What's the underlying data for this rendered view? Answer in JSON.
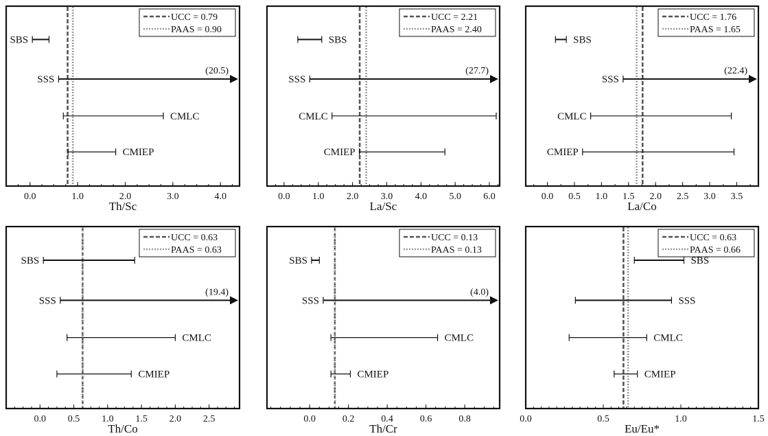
{
  "chart_data": [
    {
      "type": "range",
      "xlabel": "Th/Sc",
      "xlim": [
        -0.5,
        4.4
      ],
      "ticks": [
        0.0,
        1.0,
        2.0,
        3.0,
        4.0
      ],
      "tick_labels": [
        "0.0",
        "1.0",
        "2.0",
        "3.0",
        "4.0"
      ],
      "minor_step": 0.25,
      "references": [
        {
          "name": "UCC",
          "value": 0.79,
          "label": "UCC = 0.79"
        },
        {
          "name": "PAAS",
          "value": 0.9,
          "label": "PAAS = 0.90"
        }
      ],
      "series": [
        {
          "name": "SBS",
          "min": 0.05,
          "max": 0.4,
          "label_side": "left",
          "arrow": false,
          "max_label": ""
        },
        {
          "name": "SSS",
          "min": 0.6,
          "max": 20.5,
          "label_side": "left",
          "arrow": true,
          "max_label": "(20.5)"
        },
        {
          "name": "CMLC",
          "min": 0.7,
          "max": 2.8,
          "label_side": "right",
          "arrow": false,
          "max_label": ""
        },
        {
          "name": "CMIEP",
          "min": 0.8,
          "max": 1.8,
          "label_side": "right",
          "arrow": false,
          "max_label": ""
        }
      ]
    },
    {
      "type": "range",
      "xlabel": "La/Sc",
      "xlim": [
        -0.5,
        6.3
      ],
      "ticks": [
        0.0,
        1.0,
        2.0,
        3.0,
        4.0,
        5.0,
        6.0
      ],
      "tick_labels": [
        "0.0",
        "1.0",
        "2.0",
        "3.0",
        "4.0",
        "5.0",
        "6.0"
      ],
      "minor_step": 0.25,
      "references": [
        {
          "name": "UCC",
          "value": 2.21,
          "label": "UCC = 2.21"
        },
        {
          "name": "PAAS",
          "value": 2.4,
          "label": "PAAS = 2.40"
        }
      ],
      "series": [
        {
          "name": "SBS",
          "min": 0.4,
          "max": 1.1,
          "label_side": "right",
          "arrow": false,
          "max_label": ""
        },
        {
          "name": "SSS",
          "min": 0.75,
          "max": 27.7,
          "label_side": "left",
          "arrow": true,
          "max_label": "(27.7)"
        },
        {
          "name": "CMLC",
          "min": 1.4,
          "max": 6.2,
          "label_side": "left",
          "arrow": false,
          "max_label": ""
        },
        {
          "name": "CMIEP",
          "min": 2.2,
          "max": 4.7,
          "label_side": "left",
          "arrow": false,
          "max_label": ""
        }
      ]
    },
    {
      "type": "range",
      "xlabel": "La/Co",
      "xlim": [
        -0.4,
        3.9
      ],
      "ticks": [
        0.0,
        0.5,
        1.0,
        1.5,
        2.0,
        2.5,
        3.0,
        3.5
      ],
      "tick_labels": [
        "0.0",
        "0.5",
        "1.0",
        "1.5",
        "2.0",
        "2.5",
        "3.0",
        "3.5"
      ],
      "minor_step": 0.25,
      "references": [
        {
          "name": "UCC",
          "value": 1.76,
          "label": "UCC = 1.76"
        },
        {
          "name": "PAAS",
          "value": 1.65,
          "label": "PAAS = 1.65"
        }
      ],
      "series": [
        {
          "name": "SBS",
          "min": 0.15,
          "max": 0.35,
          "label_side": "right",
          "arrow": false,
          "max_label": ""
        },
        {
          "name": "SSS",
          "min": 1.4,
          "max": 22.4,
          "label_side": "left",
          "arrow": true,
          "max_label": "(22.4)"
        },
        {
          "name": "CMLC",
          "min": 0.8,
          "max": 3.4,
          "label_side": "left",
          "arrow": false,
          "max_label": ""
        },
        {
          "name": "CMIEP",
          "min": 0.65,
          "max": 3.45,
          "label_side": "left",
          "arrow": false,
          "max_label": ""
        }
      ]
    },
    {
      "type": "range",
      "xlabel": "Th/Co",
      "xlim": [
        -0.5,
        2.95
      ],
      "ticks": [
        0.0,
        0.5,
        1.0,
        1.5,
        2.0,
        2.5
      ],
      "tick_labels": [
        "0.0",
        "0.5",
        "1.0",
        "1.5",
        "2.0",
        "2.5"
      ],
      "minor_step": 0.125,
      "references": [
        {
          "name": "UCC",
          "value": 0.63,
          "label": "UCC = 0.63"
        },
        {
          "name": "PAAS",
          "value": 0.63,
          "label": "PAAS = 0.63"
        }
      ],
      "series": [
        {
          "name": "SBS",
          "min": 0.05,
          "max": 1.4,
          "label_side": "left",
          "arrow": false,
          "max_label": ""
        },
        {
          "name": "SSS",
          "min": 0.3,
          "max": 19.4,
          "label_side": "left",
          "arrow": true,
          "max_label": "(19.4)"
        },
        {
          "name": "CMLC",
          "min": 0.4,
          "max": 2.0,
          "label_side": "right",
          "arrow": false,
          "max_label": ""
        },
        {
          "name": "CMIEP",
          "min": 0.25,
          "max": 1.35,
          "label_side": "right",
          "arrow": false,
          "max_label": ""
        }
      ]
    },
    {
      "type": "range",
      "xlabel": "Th/Cr",
      "xlim": [
        -0.22,
        0.98
      ],
      "ticks": [
        0.0,
        0.2,
        0.4,
        0.6,
        0.8
      ],
      "tick_labels": [
        "0.0",
        "0.2",
        "0.4",
        "0.6",
        "0.8"
      ],
      "minor_step": 0.05,
      "references": [
        {
          "name": "UCC",
          "value": 0.13,
          "label": "UCC = 0.13"
        },
        {
          "name": "PAAS",
          "value": 0.13,
          "label": "PAAS = 0.13"
        }
      ],
      "series": [
        {
          "name": "SBS",
          "min": 0.01,
          "max": 0.05,
          "label_side": "left",
          "arrow": false,
          "max_label": ""
        },
        {
          "name": "SSS",
          "min": 0.07,
          "max": 4.0,
          "label_side": "left",
          "arrow": true,
          "max_label": "(4.0)"
        },
        {
          "name": "CMLC",
          "min": 0.11,
          "max": 0.66,
          "label_side": "right",
          "arrow": false,
          "max_label": ""
        },
        {
          "name": "CMIEP",
          "min": 0.11,
          "max": 0.21,
          "label_side": "right",
          "arrow": false,
          "max_label": ""
        }
      ]
    },
    {
      "type": "range",
      "xlabel": "Eu/Eu*",
      "xlim": [
        0.0,
        1.5
      ],
      "ticks": [
        0.0,
        0.5,
        1.0,
        1.5
      ],
      "tick_labels": [
        "0.0",
        "0.5",
        "1.0",
        "1.5"
      ],
      "minor_step": 0.05,
      "references": [
        {
          "name": "UCC",
          "value": 0.63,
          "label": "UCC = 0.63"
        },
        {
          "name": "PAAS",
          "value": 0.66,
          "label": "PAAS = 0.66"
        }
      ],
      "series": [
        {
          "name": "SBS",
          "min": 0.7,
          "max": 1.02,
          "label_side": "right",
          "arrow": false,
          "max_label": ""
        },
        {
          "name": "SSS",
          "min": 0.32,
          "max": 0.94,
          "label_side": "right",
          "arrow": false,
          "max_label": ""
        },
        {
          "name": "CMLC",
          "min": 0.28,
          "max": 0.78,
          "label_side": "right",
          "arrow": false,
          "max_label": ""
        },
        {
          "name": "CMIEP",
          "min": 0.57,
          "max": 0.72,
          "label_side": "right",
          "arrow": false,
          "max_label": ""
        }
      ]
    }
  ]
}
